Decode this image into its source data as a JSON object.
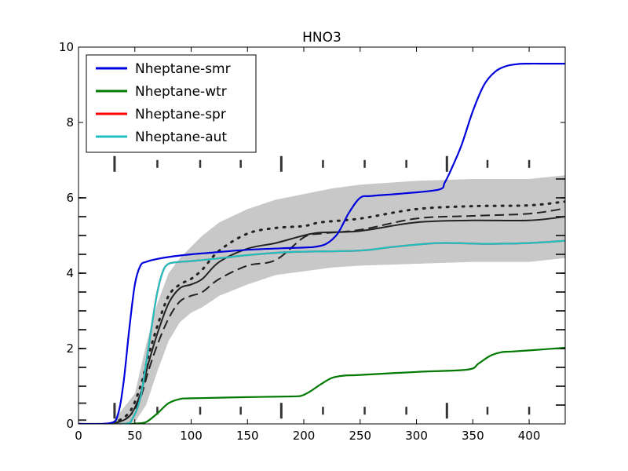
{
  "chart_data": {
    "type": "line",
    "title": "HNO3",
    "xlabel": "",
    "ylabel": "",
    "xlim": [
      0,
      432
    ],
    "ylim": [
      0,
      10
    ],
    "x_ticks": [
      0,
      50,
      100,
      150,
      200,
      250,
      300,
      350,
      400
    ],
    "y_ticks": [
      0,
      2,
      4,
      6,
      8,
      10
    ],
    "legend_position": "top-left",
    "series": [
      {
        "name": "Nheptane-smr",
        "color": "#0000dd",
        "x": [
          0,
          28,
          35,
          40,
          45,
          50,
          55,
          60,
          70,
          85,
          100,
          120,
          150,
          180,
          200,
          210,
          220,
          230,
          240,
          250,
          260,
          290,
          320,
          325,
          330,
          340,
          350,
          360,
          370,
          380,
          390,
          400,
          410,
          432
        ],
        "y": [
          0,
          0.02,
          0.25,
          1.1,
          2.5,
          3.7,
          4.2,
          4.3,
          4.38,
          4.45,
          4.5,
          4.55,
          4.62,
          4.66,
          4.68,
          4.7,
          4.78,
          5.05,
          5.6,
          6.0,
          6.05,
          6.12,
          6.22,
          6.4,
          6.7,
          7.4,
          8.3,
          9.0,
          9.35,
          9.5,
          9.55,
          9.56,
          9.56,
          9.56
        ]
      },
      {
        "name": "Nheptane-wtr",
        "color": "#007a00",
        "x": [
          0,
          40,
          50,
          60,
          70,
          80,
          90,
          100,
          150,
          190,
          198,
          205,
          215,
          225,
          235,
          250,
          300,
          345,
          355,
          365,
          375,
          385,
          400,
          432
        ],
        "y": [
          0,
          0,
          0.01,
          0.05,
          0.28,
          0.55,
          0.66,
          0.68,
          0.71,
          0.73,
          0.75,
          0.85,
          1.05,
          1.22,
          1.28,
          1.3,
          1.38,
          1.44,
          1.6,
          1.8,
          1.9,
          1.92,
          1.95,
          2.02
        ]
      },
      {
        "name": "Nheptane-spr",
        "color": "#ff0000",
        "x": [
          0,
          40,
          48,
          55,
          60,
          65,
          70,
          75,
          80,
          90,
          100,
          120,
          150,
          180,
          200,
          250,
          280,
          320,
          360,
          400,
          432
        ],
        "y": [
          0,
          0,
          0.15,
          0.7,
          1.6,
          2.6,
          3.5,
          4.05,
          4.25,
          4.3,
          4.32,
          4.38,
          4.48,
          4.55,
          4.57,
          4.6,
          4.7,
          4.8,
          4.78,
          4.8,
          4.86
        ]
      },
      {
        "name": "Nheptane-aut",
        "color": "#20c0c0",
        "x": [
          0,
          40,
          48,
          55,
          60,
          65,
          70,
          75,
          80,
          90,
          100,
          120,
          150,
          180,
          200,
          250,
          280,
          320,
          360,
          400,
          432
        ],
        "y": [
          0,
          0,
          0.15,
          0.7,
          1.6,
          2.6,
          3.5,
          4.05,
          4.25,
          4.3,
          4.32,
          4.38,
          4.48,
          4.55,
          4.57,
          4.6,
          4.7,
          4.8,
          4.78,
          4.8,
          4.86
        ]
      }
    ],
    "reference": {
      "band": {
        "color": "#c8c8c8",
        "x": [
          30,
          50,
          60,
          70,
          80,
          90,
          100,
          110,
          125,
          150,
          175,
          200,
          225,
          250,
          300,
          350,
          400,
          432
        ],
        "upper": [
          0.05,
          0.8,
          2.1,
          3.2,
          4.0,
          4.4,
          4.7,
          5.0,
          5.35,
          5.7,
          5.95,
          6.1,
          6.25,
          6.35,
          6.45,
          6.5,
          6.5,
          6.6
        ],
        "lower": [
          0,
          0.05,
          0.5,
          1.4,
          2.2,
          2.7,
          2.95,
          3.1,
          3.4,
          3.7,
          3.95,
          4.05,
          4.15,
          4.2,
          4.25,
          4.3,
          4.3,
          4.4
        ]
      },
      "lines": [
        {
          "style": "solid",
          "color": "#222222",
          "x": [
            30,
            45,
            55,
            62,
            70,
            80,
            90,
            100,
            110,
            125,
            150,
            175,
            200,
            215,
            250,
            300,
            350,
            400,
            432
          ],
          "y": [
            0,
            0.2,
            0.8,
            1.6,
            2.4,
            3.2,
            3.6,
            3.7,
            3.85,
            4.3,
            4.65,
            4.8,
            5.0,
            5.08,
            5.12,
            5.35,
            5.4,
            5.4,
            5.5
          ]
        },
        {
          "style": "dashed",
          "color": "#222222",
          "x": [
            30,
            45,
            55,
            62,
            70,
            80,
            90,
            100,
            110,
            125,
            150,
            175,
            200,
            215,
            250,
            300,
            350,
            400,
            432
          ],
          "y": [
            0,
            0.2,
            0.7,
            1.4,
            2.1,
            2.8,
            3.25,
            3.4,
            3.5,
            3.85,
            4.2,
            4.35,
            4.95,
            5.05,
            5.15,
            5.45,
            5.52,
            5.58,
            5.72
          ]
        },
        {
          "style": "dotted",
          "color": "#222222",
          "x": [
            30,
            45,
            55,
            62,
            70,
            80,
            90,
            100,
            110,
            125,
            150,
            175,
            200,
            215,
            250,
            300,
            350,
            400,
            432
          ],
          "y": [
            0,
            0.3,
            1.0,
            1.8,
            2.6,
            3.4,
            3.7,
            3.85,
            4.1,
            4.6,
            5.05,
            5.2,
            5.25,
            5.35,
            5.45,
            5.7,
            5.78,
            5.8,
            5.9
          ]
        }
      ],
      "marker_rows": [
        {
          "y": 6.9,
          "x": [
            32,
            70,
            108,
            144,
            180,
            217,
            254,
            291,
            327,
            363,
            400
          ]
        },
        {
          "y": 0.35,
          "x": [
            32,
            70,
            108,
            144,
            180,
            217,
            254,
            291,
            327,
            363,
            400
          ]
        }
      ],
      "left_ticks_y": [
        0.1,
        0.55,
        1.0,
        1.5,
        2.0,
        2.5,
        3.0,
        3.5,
        4.0,
        4.5,
        5.0,
        5.5,
        6.0
      ],
      "right_ticks_y": [
        0.5,
        1.0,
        1.5,
        2.0,
        2.5,
        3.0,
        3.5,
        4.0,
        4.5,
        5.0,
        5.5,
        6.0,
        6.5
      ]
    }
  }
}
